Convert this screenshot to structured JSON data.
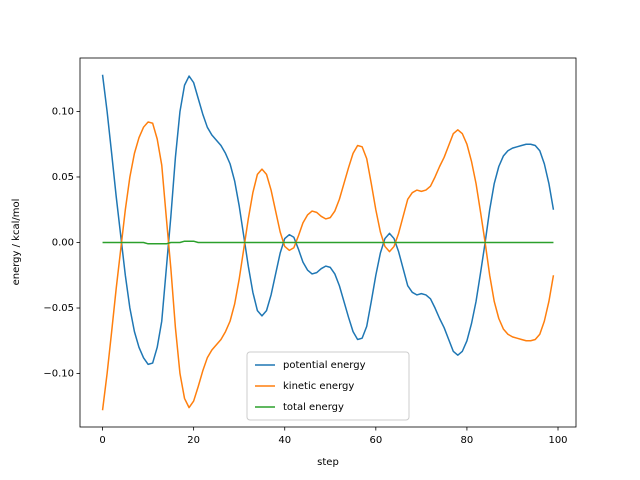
{
  "chart_data": {
    "type": "line",
    "xlabel": "step",
    "ylabel": "energy / kcal/mol",
    "x": [
      0,
      1,
      2,
      3,
      4,
      5,
      6,
      7,
      8,
      9,
      10,
      11,
      12,
      13,
      14,
      15,
      16,
      17,
      18,
      19,
      20,
      21,
      22,
      23,
      24,
      25,
      26,
      27,
      28,
      29,
      30,
      31,
      32,
      33,
      34,
      35,
      36,
      37,
      38,
      39,
      40,
      41,
      42,
      43,
      44,
      45,
      46,
      47,
      48,
      49,
      50,
      51,
      52,
      53,
      54,
      55,
      56,
      57,
      58,
      59,
      60,
      61,
      62,
      63,
      64,
      65,
      66,
      67,
      68,
      69,
      70,
      71,
      72,
      73,
      74,
      75,
      76,
      77,
      78,
      79,
      80,
      81,
      82,
      83,
      84,
      85,
      86,
      87,
      88,
      89,
      90,
      91,
      92,
      93,
      94,
      95,
      96,
      97,
      98,
      99
    ],
    "series": [
      {
        "name": "potential energy",
        "color": "#1f77b4",
        "values": [
          0.128,
          0.1,
          0.068,
          0.035,
          0.005,
          -0.025,
          -0.05,
          -0.068,
          -0.08,
          -0.088,
          -0.093,
          -0.092,
          -0.08,
          -0.06,
          -0.02,
          0.02,
          0.065,
          0.1,
          0.12,
          0.127,
          0.122,
          0.11,
          0.098,
          0.088,
          0.082,
          0.078,
          0.074,
          0.068,
          0.06,
          0.047,
          0.028,
          0.005,
          -0.018,
          -0.038,
          -0.052,
          -0.056,
          -0.052,
          -0.04,
          -0.024,
          -0.008,
          0.003,
          0.006,
          0.004,
          -0.005,
          -0.015,
          -0.021,
          -0.024,
          -0.023,
          -0.02,
          -0.018,
          -0.019,
          -0.024,
          -0.033,
          -0.045,
          -0.057,
          -0.068,
          -0.074,
          -0.073,
          -0.064,
          -0.045,
          -0.025,
          -0.008,
          0.003,
          0.007,
          0.003,
          -0.007,
          -0.02,
          -0.033,
          -0.038,
          -0.04,
          -0.039,
          -0.04,
          -0.043,
          -0.05,
          -0.058,
          -0.065,
          -0.074,
          -0.083,
          -0.086,
          -0.083,
          -0.075,
          -0.062,
          -0.045,
          -0.023,
          0.0,
          0.025,
          0.045,
          0.058,
          0.066,
          0.07,
          0.072,
          0.073,
          0.074,
          0.075,
          0.075,
          0.074,
          0.07,
          0.06,
          0.045,
          0.025
        ]
      },
      {
        "name": "kinetic energy",
        "color": "#ff7f0e",
        "values": [
          -0.128,
          -0.1,
          -0.068,
          -0.035,
          -0.005,
          0.025,
          0.05,
          0.068,
          0.08,
          0.088,
          0.092,
          0.091,
          0.079,
          0.059,
          0.019,
          -0.02,
          -0.065,
          -0.1,
          -0.119,
          -0.126,
          -0.121,
          -0.11,
          -0.098,
          -0.088,
          -0.082,
          -0.078,
          -0.074,
          -0.068,
          -0.06,
          -0.047,
          -0.028,
          -0.005,
          0.018,
          0.038,
          0.052,
          0.056,
          0.052,
          0.04,
          0.024,
          0.008,
          -0.003,
          -0.006,
          -0.004,
          0.005,
          0.015,
          0.021,
          0.024,
          0.023,
          0.02,
          0.018,
          0.019,
          0.024,
          0.033,
          0.045,
          0.057,
          0.068,
          0.074,
          0.073,
          0.064,
          0.045,
          0.025,
          0.008,
          -0.003,
          -0.007,
          -0.003,
          0.007,
          0.02,
          0.033,
          0.038,
          0.04,
          0.039,
          0.04,
          0.043,
          0.05,
          0.058,
          0.065,
          0.074,
          0.083,
          0.086,
          0.083,
          0.075,
          0.062,
          0.045,
          0.023,
          0.0,
          -0.025,
          -0.045,
          -0.058,
          -0.066,
          -0.07,
          -0.072,
          -0.073,
          -0.074,
          -0.075,
          -0.075,
          -0.074,
          -0.07,
          -0.06,
          -0.045,
          -0.025
        ]
      },
      {
        "name": "total energy",
        "color": "#2ca02c",
        "values": [
          0,
          0,
          0,
          0,
          0,
          0,
          0,
          0,
          0,
          0,
          -0.001,
          -0.001,
          -0.001,
          -0.001,
          -0.001,
          0,
          0,
          0,
          0.001,
          0.001,
          0.001,
          0,
          0,
          0,
          0,
          0,
          0,
          0,
          0,
          0,
          0,
          0,
          0,
          0,
          0,
          0,
          0,
          0,
          0,
          0,
          0,
          0,
          0,
          0,
          0,
          0,
          0,
          0,
          0,
          0,
          0,
          0,
          0,
          0,
          0,
          0,
          0,
          0,
          0,
          0,
          0,
          0,
          0,
          0,
          0,
          0,
          0,
          0,
          0,
          0,
          0,
          0,
          0,
          0,
          0,
          0,
          0,
          0,
          0,
          0,
          0,
          0,
          0,
          0,
          0,
          0,
          0,
          0,
          0,
          0,
          0,
          0,
          0,
          0,
          0,
          0,
          0,
          0,
          0,
          0
        ]
      }
    ],
    "xlim": [
      -4.95,
      103.95
    ],
    "xticks": [
      0,
      20,
      40,
      60,
      80,
      100
    ],
    "ylim": [
      -0.1408,
      0.1408
    ],
    "yticks": [
      {
        "value": -0.1,
        "label": "−0.10"
      },
      {
        "value": -0.05,
        "label": "−0.05"
      },
      {
        "value": 0,
        "label": "0.00"
      },
      {
        "value": 0.05,
        "label": "0.05"
      },
      {
        "value": 0.1,
        "label": "0.10"
      }
    ],
    "legend": "lower center"
  }
}
